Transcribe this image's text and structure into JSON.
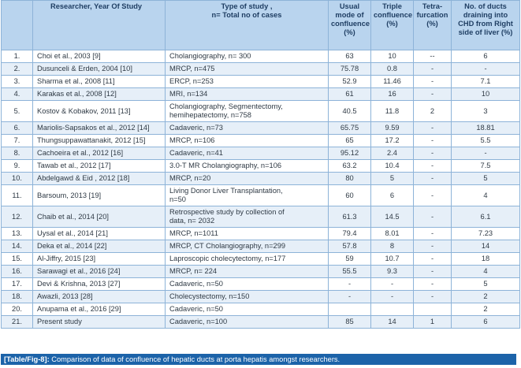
{
  "table": {
    "headers": [
      "",
      "Researcher, Year Of Study",
      "Type of study ,\nn= Total no of cases",
      "Usual\nmode of\nconfluence\n(%)",
      "Triple\nconfluence\n(%)",
      "Tetra-\nfurcation\n(%)",
      "No. of ducts\ndraining into\nCHD from Right\nside of liver (%)"
    ],
    "rows": [
      [
        "1.",
        "Choi et al., 2003 [9]",
        "Cholangiography, n= 300",
        "63",
        "10",
        "--",
        "6"
      ],
      [
        "2.",
        "Dusunceli & Erden, 2004 [10]",
        "MRCP, n=475",
        "75.78",
        "0.8",
        "-",
        "-"
      ],
      [
        "3.",
        "Sharma et al., 2008   [11]",
        "ERCP, n=253",
        "52.9",
        "11.46",
        "-",
        "7.1"
      ],
      [
        "4.",
        "Karakas et al., 2008 [12]",
        "MRI, n=134",
        "61",
        "16",
        "-",
        "10"
      ],
      [
        "5.",
        "Kostov & Kobakov, 2011 [13]",
        "Cholangiography, Segmentectomy,\nhemihepatectomy, n=758",
        "40.5",
        "11.8",
        "2",
        "3"
      ],
      [
        "6.",
        "Mariolis-Sapsakos et al., 2012 [14]",
        "Cadaveric, n=73",
        "65.75",
        "9.59",
        "-",
        "18.81"
      ],
      [
        "7.",
        "Thungsuppawattanakit, 2012 [15]",
        "MRCP, n=106",
        "65",
        "17.2",
        "-",
        "5.5"
      ],
      [
        "8.",
        "Cachoeira et al., 2012 [16]",
        "Cadaveric, n=41",
        "95.12",
        "2.4",
        "-",
        "-"
      ],
      [
        "9.",
        "Tawab et al., 2012  [17]",
        "3.0-T MR Cholangiography, n=106",
        "63.2",
        "10.4",
        "-",
        "7.5"
      ],
      [
        "10.",
        "Abdelgawd & Eid , 2012 [18]",
        "MRCP, n=20",
        "80",
        "5",
        "-",
        "5"
      ],
      [
        "11.",
        "Barsoum, 2013 [19]",
        "Living Donor Liver Transplantation,\nn=50",
        "60",
        "6",
        "-",
        "4"
      ],
      [
        "12.",
        "Chaib et al., 2014     [20]",
        "Retrospective  study by collection of\ndata, n= 2032",
        "61.3",
        "14.5",
        "-",
        "6.1"
      ],
      [
        "13.",
        "Uysal et al., 2014 [21]",
        " MRCP, n=1011",
        "79.4",
        "8.01",
        "-",
        "7.23"
      ],
      [
        "14.",
        "Deka et al., 2014 [22]",
        "MRCP, CT Cholangiography, n=299",
        "57.8",
        "8",
        "-",
        "14"
      ],
      [
        "15.",
        "Al-Jiffry, 2015 [23]",
        "Laproscopic cholecytectomy, n=177",
        "59",
        "10.7",
        "-",
        "18"
      ],
      [
        "16.",
        "Sarawagi et al., 2016 [24]",
        "MRCP, n= 224",
        "55.5",
        "9.3",
        "-",
        "4"
      ],
      [
        "17.",
        "Devi & Krishna, 2013 [27]",
        "Cadaveric, n=50",
        "-",
        "-",
        "-",
        "5"
      ],
      [
        "18.",
        "Awazli, 2013 [28]",
        "Cholecystectomy, n=150",
        "-",
        "-",
        "-",
        "2"
      ],
      [
        "20.",
        "Anupama et al., 2016 [29]",
        "Cadaveric, n=50",
        "",
        "",
        "",
        "2"
      ],
      [
        "21.",
        "Present study",
        "Cadaveric, n=100",
        "85",
        "14",
        "1",
        "6"
      ]
    ]
  },
  "caption": {
    "label": "[Table/Fig-8]:",
    "text": " Comparison of data of confluence of hepatic ducts at porta hepatis amongst researchers."
  }
}
